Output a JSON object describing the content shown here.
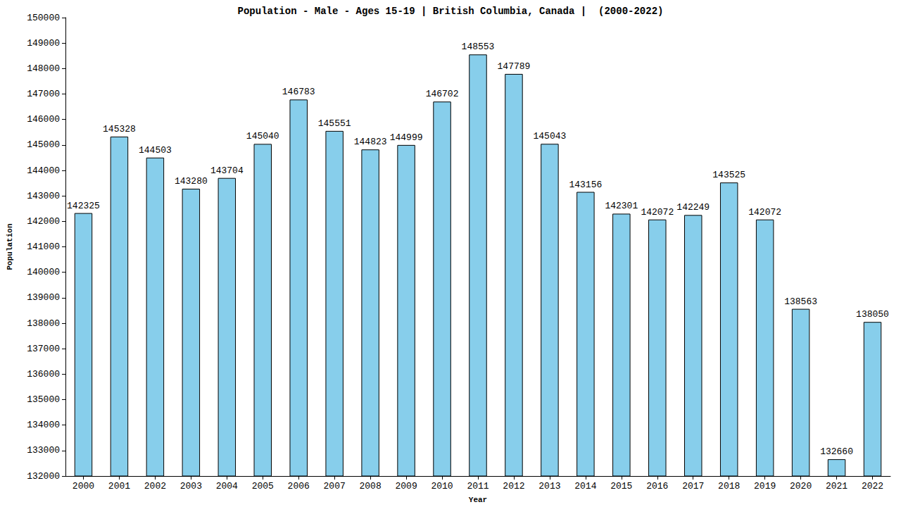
{
  "chart_data": {
    "type": "bar",
    "title": "Population - Male - Ages 15-19 | British Columbia, Canada |  (2000-2022)",
    "x_label": "Year",
    "y_label": "Population",
    "categories": [
      "2000",
      "2001",
      "2002",
      "2003",
      "2004",
      "2005",
      "2006",
      "2007",
      "2008",
      "2009",
      "2010",
      "2011",
      "2012",
      "2013",
      "2014",
      "2015",
      "2016",
      "2017",
      "2018",
      "2019",
      "2020",
      "2021",
      "2022"
    ],
    "values": [
      142325,
      145328,
      144503,
      143280,
      143704,
      145040,
      146783,
      145551,
      144823,
      144999,
      146702,
      148553,
      147789,
      145043,
      143156,
      142301,
      142072,
      142249,
      143525,
      142072,
      138563,
      132660,
      138050
    ],
    "color": "#87ceeb",
    "ylim": [
      132000,
      150000
    ],
    "yticks": [
      132000,
      133000,
      134000,
      135000,
      136000,
      137000,
      138000,
      139000,
      140000,
      141000,
      142000,
      143000,
      144000,
      145000,
      146000,
      147000,
      148000,
      149000,
      150000
    ],
    "grid": false,
    "data_labels": true
  }
}
